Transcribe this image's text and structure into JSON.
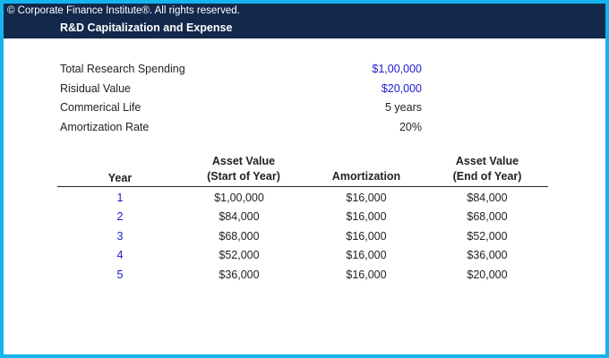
{
  "header": {
    "copyright": "© Corporate Finance Institute®. All rights reserved.",
    "title": "R&D Capitalization and Expense"
  },
  "params": [
    {
      "label": "Total Research Spending",
      "value": "$1,00,000",
      "color": "#1a1acf"
    },
    {
      "label": "Risidual Value",
      "value": "$20,000",
      "color": "#1a1acf"
    },
    {
      "label": "Commerical Life",
      "value": "5 years",
      "color": "#222222"
    },
    {
      "label": "Amortization Rate",
      "value": "20%",
      "color": "#222222"
    }
  ],
  "table": {
    "headers": {
      "year": "Year",
      "start_line1": "Asset Value",
      "start_line2": "(Start of Year)",
      "amortization": "Amortization",
      "end_line1": "Asset Value",
      "end_line2": "(End of Year)"
    },
    "rows": [
      {
        "year": "1",
        "start": "$1,00,000",
        "amortization": "$16,000",
        "end": "$84,000"
      },
      {
        "year": "2",
        "start": "$84,000",
        "amortization": "$16,000",
        "end": "$68,000"
      },
      {
        "year": "3",
        "start": "$68,000",
        "amortization": "$16,000",
        "end": "$52,000"
      },
      {
        "year": "4",
        "start": "$52,000",
        "amortization": "$16,000",
        "end": "$36,000"
      },
      {
        "year": "5",
        "start": "$36,000",
        "amortization": "$16,000",
        "end": "$20,000"
      }
    ]
  },
  "colors": {
    "frame": "#14b4ef",
    "header_bg": "#13294b",
    "input_blue": "#1a1acf"
  }
}
